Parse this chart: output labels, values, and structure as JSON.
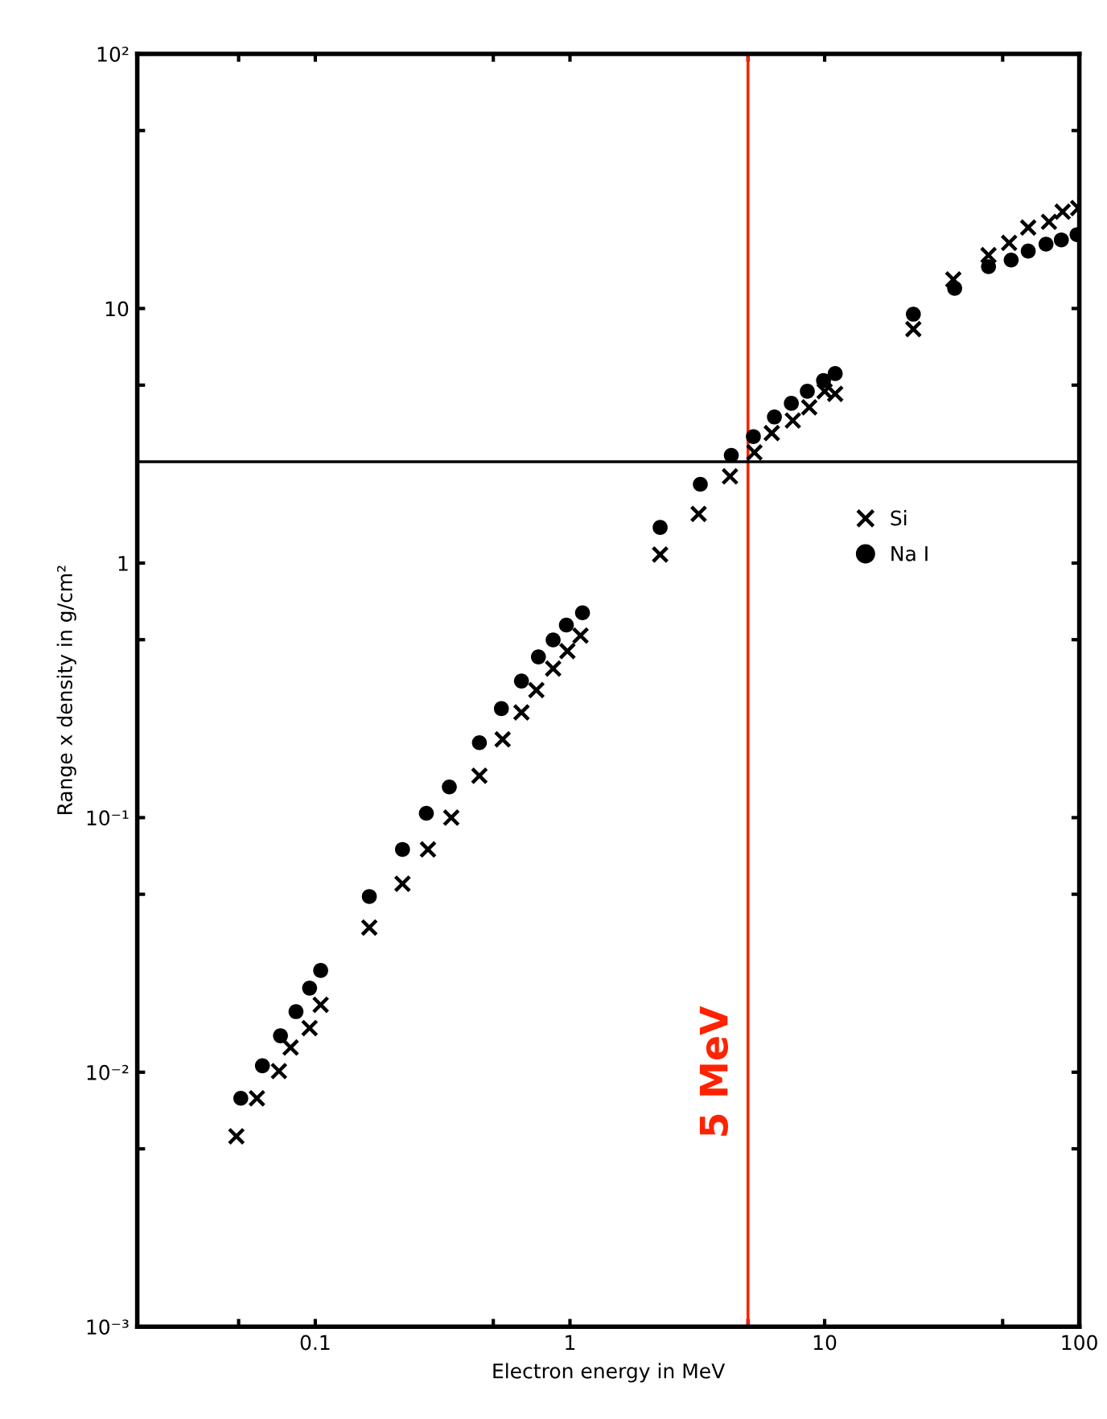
{
  "chart_data": {
    "type": "scatter",
    "xlabel": "Electron energy in MeV",
    "ylabel": "Range x density in g/cm²",
    "log": "xy",
    "xlim": [
      0.02,
      100
    ],
    "ylim": [
      0.001,
      100
    ],
    "xticks": [
      {
        "value": 0.05,
        "label": null
      },
      {
        "value": 0.1,
        "label": "0.1"
      },
      {
        "value": 0.5,
        "label": null
      },
      1,
      {
        "value": 5,
        "label": null
      },
      10,
      {
        "value": 50,
        "label": null
      },
      100
    ],
    "yticks": [
      {
        "value": 0.001,
        "label": "10⁻³"
      },
      {
        "value": 0.005,
        "label": null
      },
      {
        "value": 0.01,
        "label": "10⁻²"
      },
      {
        "value": 0.05,
        "label": null
      },
      {
        "value": 0.1,
        "label": "10⁻¹"
      },
      {
        "value": 0.5,
        "label": null
      },
      1,
      {
        "value": 5,
        "label": null
      },
      10,
      {
        "value": 50,
        "label": null
      },
      {
        "value": 100,
        "label": "10²"
      }
    ],
    "grid": false,
    "legend": "right",
    "series": [
      {
        "name": "Si",
        "color": "#000000",
        "marker": "cross",
        "x": [
          0.049,
          0.059,
          0.072,
          0.08,
          0.095,
          0.105,
          0.163,
          0.22,
          0.277,
          0.342,
          0.441,
          0.544,
          0.645,
          0.738,
          0.859,
          0.977,
          1.1,
          2.26,
          3.2,
          4.25,
          5.3,
          6.2,
          7.5,
          8.7,
          10.0,
          11.0,
          22.3,
          32,
          44,
          53,
          63,
          76,
          86,
          99
        ],
        "values": [
          0.0056,
          0.0079,
          0.0101,
          0.0125,
          0.0149,
          0.0184,
          0.037,
          0.055,
          0.075,
          0.1,
          0.146,
          0.203,
          0.259,
          0.317,
          0.385,
          0.451,
          0.519,
          1.08,
          1.56,
          2.19,
          2.72,
          3.24,
          3.63,
          4.09,
          4.73,
          4.62,
          8.3,
          13.0,
          16.2,
          18.1,
          20.8,
          21.9,
          24.0,
          24.8
        ]
      },
      {
        "name": "Na I",
        "color": "#000000",
        "marker": "circle",
        "x": [
          0.051,
          0.062,
          0.073,
          0.084,
          0.095,
          0.105,
          0.163,
          0.22,
          0.273,
          0.336,
          0.441,
          0.538,
          0.645,
          0.752,
          0.859,
          0.968,
          1.12,
          2.26,
          3.25,
          4.3,
          5.25,
          6.35,
          7.4,
          8.55,
          9.9,
          11.0,
          22.3,
          32.4,
          44,
          54,
          63,
          74,
          85,
          98
        ],
        "values": [
          0.0079,
          0.0106,
          0.0139,
          0.0173,
          0.0214,
          0.0251,
          0.049,
          0.075,
          0.104,
          0.132,
          0.197,
          0.268,
          0.344,
          0.428,
          0.499,
          0.571,
          0.638,
          1.38,
          2.04,
          2.65,
          3.14,
          3.75,
          4.24,
          4.73,
          5.21,
          5.55,
          9.5,
          12.0,
          14.6,
          15.5,
          16.8,
          17.9,
          18.6,
          19.5
        ]
      }
    ],
    "ref_lines": [
      {
        "axis": "x",
        "value": 5,
        "label": "5 MeV",
        "color": "#ff2200",
        "line_style": "solid"
      },
      {
        "axis": "y",
        "value": 2.5,
        "label": null,
        "color": "#000000",
        "line_style": "solid"
      }
    ]
  }
}
